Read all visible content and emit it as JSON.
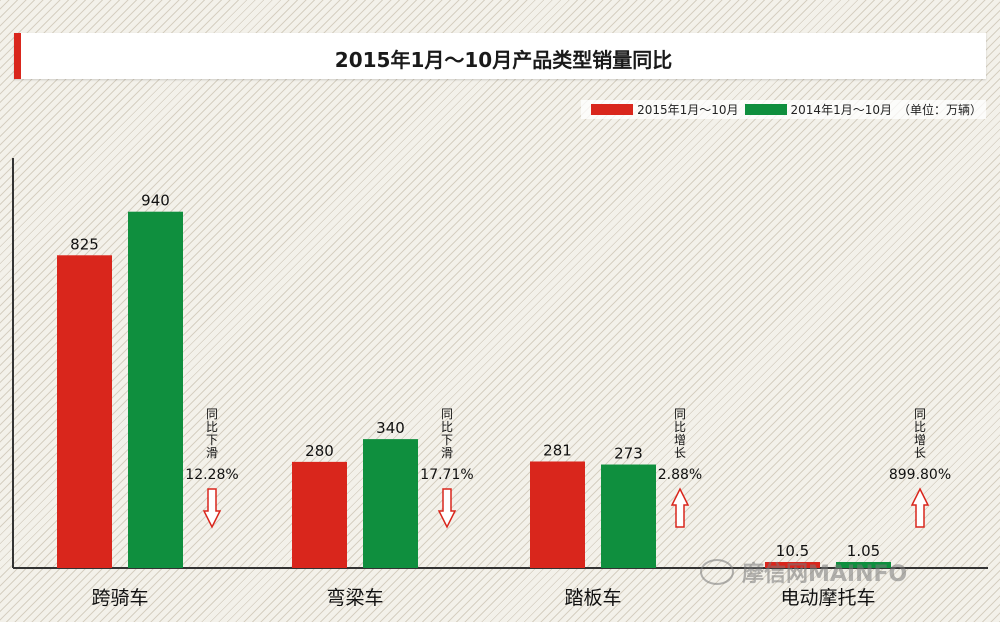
{
  "title": "2015年1月～10月产品类型销量同比",
  "legend": {
    "items": [
      {
        "label": "2015年1月～10月",
        "color": "#d9261c"
      },
      {
        "label": "2014年1月～10月",
        "color": "#0f8f3e"
      }
    ],
    "unit": "（单位：万辆）"
  },
  "watermark": "摩信网MAINFO",
  "chart_data": {
    "type": "bar",
    "title": "2015年1月～10月产品类型销量同比",
    "categories": [
      "跨骑车",
      "弯梁车",
      "踏板车",
      "电动摩托车"
    ],
    "series": [
      {
        "name": "2015年1月～10月",
        "color": "#d9261c",
        "values": [
          825,
          280,
          281,
          10.5
        ],
        "labels": [
          "825",
          "280",
          "281",
          "10.5"
        ]
      },
      {
        "name": "2014年1月～10月",
        "color": "#0f8f3e",
        "values": [
          940,
          340,
          273,
          1.05
        ],
        "labels": [
          "940",
          "340",
          "273",
          "1.05"
        ]
      }
    ],
    "annotations": [
      {
        "category": "跨骑车",
        "text": "同比下滑",
        "value": "12.28%",
        "direction": "down"
      },
      {
        "category": "弯梁车",
        "text": "同比下滑",
        "value": "17.71%",
        "direction": "down"
      },
      {
        "category": "踏板车",
        "text": "同比增长",
        "value": "2.88%",
        "direction": "up"
      },
      {
        "category": "电动摩托车",
        "text": "同比增长",
        "value": "899.80%",
        "direction": "up"
      }
    ],
    "ylim": [
      0,
      1050
    ],
    "grid": false,
    "legend_position": "top-right"
  }
}
